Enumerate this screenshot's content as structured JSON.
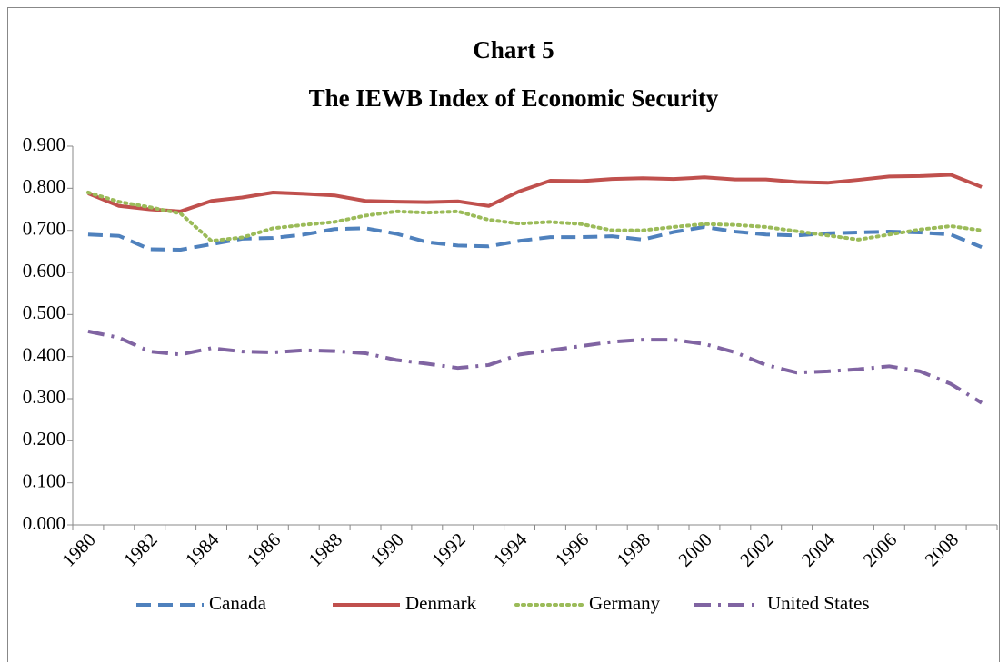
{
  "chart_data": {
    "type": "line",
    "title": "Chart 5",
    "subtitle": "The IEWB Index of Economic Security",
    "categories": [
      "1980",
      null,
      "1982",
      null,
      "1984",
      null,
      "1986",
      null,
      "1988",
      null,
      "1990",
      null,
      "1992",
      null,
      "1994",
      null,
      "1996",
      null,
      "1998",
      null,
      "2000",
      null,
      "2002",
      null,
      "2004",
      null,
      "2006",
      null,
      "2008",
      null
    ],
    "series": [
      {
        "name": "Canada",
        "color": "#4f81bd",
        "dash": "dashed",
        "values": [
          0.69,
          0.687,
          0.655,
          0.654,
          0.667,
          0.68,
          0.682,
          0.69,
          0.703,
          0.705,
          0.692,
          0.672,
          0.664,
          0.662,
          0.675,
          0.684,
          0.684,
          0.686,
          0.678,
          0.696,
          0.708,
          0.697,
          0.69,
          0.688,
          0.693,
          0.695,
          0.697,
          0.695,
          0.69,
          0.66
        ]
      },
      {
        "name": "Denmark",
        "color": "#c0504d",
        "dash": "solid",
        "values": [
          0.788,
          0.758,
          0.75,
          0.745,
          0.77,
          0.778,
          0.79,
          0.787,
          0.783,
          0.77,
          0.768,
          0.767,
          0.769,
          0.758,
          0.793,
          0.818,
          0.817,
          0.822,
          0.824,
          0.822,
          0.826,
          0.821,
          0.821,
          0.815,
          0.813,
          0.82,
          0.828,
          0.829,
          0.832,
          0.803
        ]
      },
      {
        "name": "Germany",
        "color": "#9bbb59",
        "dash": "dotted",
        "values": [
          0.79,
          0.768,
          0.755,
          0.74,
          0.675,
          0.683,
          0.705,
          0.713,
          0.72,
          0.735,
          0.745,
          0.742,
          0.745,
          0.725,
          0.716,
          0.72,
          0.715,
          0.7,
          0.7,
          0.708,
          0.715,
          0.713,
          0.708,
          0.698,
          0.688,
          0.678,
          0.69,
          0.702,
          0.71,
          0.7
        ]
      },
      {
        "name": "United States",
        "color": "#8064a2",
        "dash": "dashdot",
        "values": [
          0.46,
          0.445,
          0.412,
          0.405,
          0.42,
          0.412,
          0.41,
          0.415,
          0.413,
          0.408,
          0.392,
          0.383,
          0.373,
          0.38,
          0.405,
          0.415,
          0.425,
          0.435,
          0.44,
          0.44,
          0.43,
          0.41,
          0.38,
          0.362,
          0.365,
          0.37,
          0.377,
          0.365,
          0.335,
          0.29
        ]
      }
    ],
    "ylim": [
      0,
      0.9
    ],
    "yticks": [
      {
        "value": 0,
        "label": "0.000"
      },
      {
        "value": 0.1,
        "label": "0.100"
      },
      {
        "value": 0.2,
        "label": "0.200"
      },
      {
        "value": 0.3,
        "label": "0.300"
      },
      {
        "value": 0.4,
        "label": "0.400"
      },
      {
        "value": 0.5,
        "label": "0.500"
      },
      {
        "value": 0.6,
        "label": "0.600"
      },
      {
        "value": 0.7,
        "label": "0.700"
      },
      {
        "value": 0.8,
        "label": "0.800"
      },
      {
        "value": 0.9,
        "label": "0.900"
      }
    ],
    "grid": false,
    "legend": "bottom"
  }
}
